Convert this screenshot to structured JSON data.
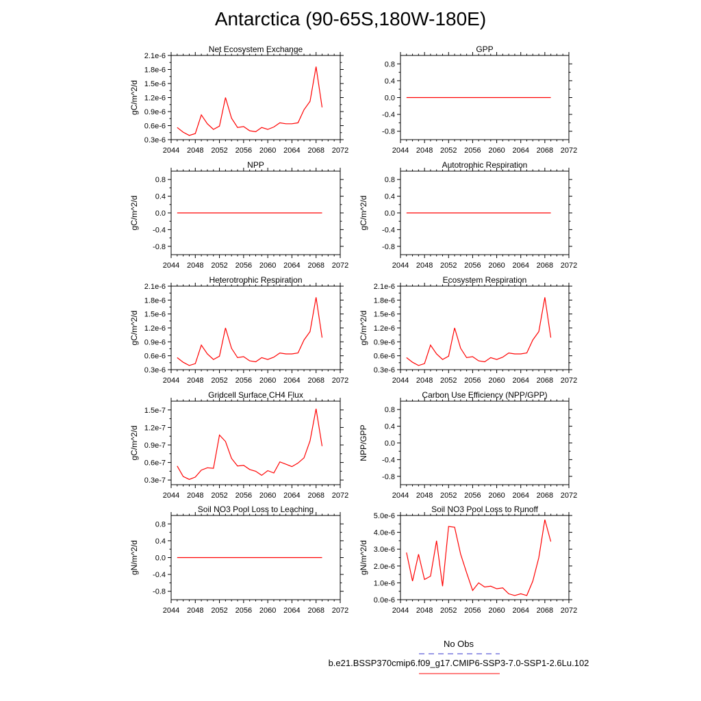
{
  "title": "Antarctica (90-65S,180W-180E)",
  "legend": {
    "obs_label": "No Obs",
    "case_label": "b.e21.BSSP370cmip6.f09_g17.CMIP6-SSP3-7.0-SSP1-2.6Lu.102",
    "obs_color": "#3333cc",
    "case_color": "#ff0000"
  },
  "chart_data": [
    {
      "type": "line",
      "title": "Net Ecosystem Exchange",
      "ylabel": "gC/m^2/d",
      "xlim": [
        2044,
        2072
      ],
      "xticks": [
        "2044",
        "2048",
        "2052",
        "2056",
        "2060",
        "2064",
        "2068",
        "2072"
      ],
      "ylim": [
        3e-07,
        2.1e-06
      ],
      "yticks": [
        "0.3e-6",
        "0.6e-6",
        "0.9e-6",
        "1.2e-6",
        "1.5e-6",
        "1.8e-6",
        "2.1e-6"
      ],
      "series": [
        {
          "color": "#ff0000",
          "x": [
            2045,
            2046,
            2047,
            2048,
            2049,
            2050,
            2051,
            2052,
            2053,
            2054,
            2055,
            2056,
            2057,
            2058,
            2059,
            2060,
            2061,
            2062,
            2063,
            2064,
            2065,
            2066,
            2067,
            2068,
            2069
          ],
          "y": [
            5.6e-07,
            4.6e-07,
            3.9e-07,
            4.3e-07,
            8.3e-07,
            6.4e-07,
            5.2e-07,
            5.9e-07,
            1.2e-06,
            7.6e-07,
            5.6e-07,
            5.8e-07,
            4.9e-07,
            4.7e-07,
            5.6e-07,
            5.2e-07,
            5.7e-07,
            6.6e-07,
            6.4e-07,
            6.4e-07,
            6.6e-07,
            9.4e-07,
            1.12e-06,
            1.86e-06,
            9.9e-07
          ]
        }
      ]
    },
    {
      "type": "line",
      "title": "GPP",
      "ylabel": "",
      "xlim": [
        2044,
        2072
      ],
      "xticks": [
        "2044",
        "2048",
        "2052",
        "2056",
        "2060",
        "2064",
        "2068",
        "2072"
      ],
      "ylim": [
        -1,
        1
      ],
      "yticks": [
        "-0.8",
        "-0.4",
        "0.0",
        "0.4",
        "0.8"
      ],
      "series": [
        {
          "color": "#ff0000",
          "x": [
            2045,
            2069
          ],
          "y": [
            0,
            0
          ]
        }
      ]
    },
    {
      "type": "line",
      "title": "NPP",
      "ylabel": "gC/m^2/d",
      "xlim": [
        2044,
        2072
      ],
      "xticks": [
        "2044",
        "2048",
        "2052",
        "2056",
        "2060",
        "2064",
        "2068",
        "2072"
      ],
      "ylim": [
        -1,
        1
      ],
      "yticks": [
        "-0.8",
        "-0.4",
        "0.0",
        "0.4",
        "0.8"
      ],
      "series": [
        {
          "color": "#ff0000",
          "x": [
            2045,
            2069
          ],
          "y": [
            0,
            0
          ]
        }
      ]
    },
    {
      "type": "line",
      "title": "Autotrophic Respiration",
      "ylabel": "gC/m^2/d",
      "xlim": [
        2044,
        2072
      ],
      "xticks": [
        "2044",
        "2048",
        "2052",
        "2056",
        "2060",
        "2064",
        "2068",
        "2072"
      ],
      "ylim": [
        -1,
        1
      ],
      "yticks": [
        "-0.8",
        "-0.4",
        "0.0",
        "0.4",
        "0.8"
      ],
      "series": [
        {
          "color": "#ff0000",
          "x": [
            2045,
            2069
          ],
          "y": [
            0,
            0
          ]
        }
      ]
    },
    {
      "type": "line",
      "title": "Heterotrophic Respiration",
      "ylabel": "gC/m^2/d",
      "xlim": [
        2044,
        2072
      ],
      "xticks": [
        "2044",
        "2048",
        "2052",
        "2056",
        "2060",
        "2064",
        "2068",
        "2072"
      ],
      "ylim": [
        3e-07,
        2.1e-06
      ],
      "yticks": [
        "0.3e-6",
        "0.6e-6",
        "0.9e-6",
        "1.2e-6",
        "1.5e-6",
        "1.8e-6",
        "2.1e-6"
      ],
      "series": [
        {
          "color": "#ff0000",
          "x": [
            2045,
            2046,
            2047,
            2048,
            2049,
            2050,
            2051,
            2052,
            2053,
            2054,
            2055,
            2056,
            2057,
            2058,
            2059,
            2060,
            2061,
            2062,
            2063,
            2064,
            2065,
            2066,
            2067,
            2068,
            2069
          ],
          "y": [
            5.6e-07,
            4.6e-07,
            3.9e-07,
            4.3e-07,
            8.3e-07,
            6.4e-07,
            5.2e-07,
            5.9e-07,
            1.2e-06,
            7.6e-07,
            5.6e-07,
            5.8e-07,
            4.9e-07,
            4.7e-07,
            5.6e-07,
            5.2e-07,
            5.7e-07,
            6.6e-07,
            6.4e-07,
            6.4e-07,
            6.6e-07,
            9.4e-07,
            1.12e-06,
            1.86e-06,
            9.9e-07
          ]
        }
      ]
    },
    {
      "type": "line",
      "title": "Ecosystem Respiration",
      "ylabel": "gC/m^2/d",
      "xlim": [
        2044,
        2072
      ],
      "xticks": [
        "2044",
        "2048",
        "2052",
        "2056",
        "2060",
        "2064",
        "2068",
        "2072"
      ],
      "ylim": [
        3e-07,
        2.1e-06
      ],
      "yticks": [
        "0.3e-6",
        "0.6e-6",
        "0.9e-6",
        "1.2e-6",
        "1.5e-6",
        "1.8e-6",
        "2.1e-6"
      ],
      "series": [
        {
          "color": "#ff0000",
          "x": [
            2045,
            2046,
            2047,
            2048,
            2049,
            2050,
            2051,
            2052,
            2053,
            2054,
            2055,
            2056,
            2057,
            2058,
            2059,
            2060,
            2061,
            2062,
            2063,
            2064,
            2065,
            2066,
            2067,
            2068,
            2069
          ],
          "y": [
            5.6e-07,
            4.6e-07,
            3.9e-07,
            4.3e-07,
            8.3e-07,
            6.4e-07,
            5.2e-07,
            5.9e-07,
            1.2e-06,
            7.6e-07,
            5.6e-07,
            5.8e-07,
            4.9e-07,
            4.7e-07,
            5.6e-07,
            5.2e-07,
            5.7e-07,
            6.6e-07,
            6.4e-07,
            6.4e-07,
            6.6e-07,
            9.4e-07,
            1.12e-06,
            1.86e-06,
            9.9e-07
          ]
        }
      ]
    },
    {
      "type": "line",
      "title": "Gridcell Surface CH4 Flux",
      "ylabel": "gC/m^2/d",
      "xlim": [
        2044,
        2072
      ],
      "xticks": [
        "2044",
        "2048",
        "2052",
        "2056",
        "2060",
        "2064",
        "2068",
        "2072"
      ],
      "ylim": [
        2.2e-08,
        1.65e-07
      ],
      "yticks": [
        "0.3e-7",
        "0.6e-7",
        "0.9e-7",
        "1.2e-7",
        "1.5e-7"
      ],
      "ytick_values": [
        3e-08,
        6e-08,
        9e-08,
        1.2e-07,
        1.5e-07
      ],
      "series": [
        {
          "color": "#ff0000",
          "x": [
            2045,
            2046,
            2047,
            2048,
            2049,
            2050,
            2051,
            2052,
            2053,
            2054,
            2055,
            2056,
            2057,
            2058,
            2059,
            2060,
            2061,
            2062,
            2063,
            2064,
            2065,
            2066,
            2067,
            2068,
            2069
          ],
          "y": [
            5.4e-08,
            3.6e-08,
            3.1e-08,
            3.5e-08,
            4.7e-08,
            5.1e-08,
            5e-08,
            1.07e-07,
            9.6e-08,
            6.7e-08,
            5.4e-08,
            5.5e-08,
            4.8e-08,
            4.5e-08,
            3.8e-08,
            4.6e-08,
            4.2e-08,
            6.1e-08,
            5.7e-08,
            5.3e-08,
            5.9e-08,
            6.8e-08,
            9.7e-08,
            1.52e-07,
            8.8e-08
          ]
        }
      ]
    },
    {
      "type": "line",
      "title": "Carbon Use Efficiency (NPP/GPP)",
      "ylabel": "NPP/GPP",
      "xlim": [
        2044,
        2072
      ],
      "xticks": [
        "2044",
        "2048",
        "2052",
        "2056",
        "2060",
        "2064",
        "2068",
        "2072"
      ],
      "ylim": [
        -1,
        1
      ],
      "yticks": [
        "-0.8",
        "-0.4",
        "0.0",
        "0.4",
        "0.8"
      ],
      "series": []
    },
    {
      "type": "line",
      "title": "Soil NO3 Pool Loss to Leaching",
      "ylabel": "gN/m^2/d",
      "xlim": [
        2044,
        2072
      ],
      "xticks": [
        "2044",
        "2048",
        "2052",
        "2056",
        "2060",
        "2064",
        "2068",
        "2072"
      ],
      "ylim": [
        -1,
        1
      ],
      "yticks": [
        "-0.8",
        "-0.4",
        "0.0",
        "0.4",
        "0.8"
      ],
      "series": [
        {
          "color": "#ff0000",
          "x": [
            2045,
            2069
          ],
          "y": [
            0,
            0
          ]
        }
      ]
    },
    {
      "type": "line",
      "title": "Soil NO3 Pool Loss to Runoff",
      "ylabel": "gN/m^2/d",
      "xlim": [
        2044,
        2072
      ],
      "xticks": [
        "2044",
        "2048",
        "2052",
        "2056",
        "2060",
        "2064",
        "2068",
        "2072"
      ],
      "ylim": [
        0,
        5e-06
      ],
      "yticks": [
        "0.0e-6",
        "1.0e-6",
        "2.0e-6",
        "3.0e-6",
        "4.0e-6",
        "5.0e-6"
      ],
      "series": [
        {
          "color": "#ff0000",
          "x": [
            2045,
            2046,
            2047,
            2048,
            2049,
            2050,
            2051,
            2052,
            2053,
            2054,
            2055,
            2056,
            2057,
            2058,
            2059,
            2060,
            2061,
            2062,
            2063,
            2064,
            2065,
            2066,
            2067,
            2068,
            2069
          ],
          "y": [
            2.8e-06,
            1.1e-06,
            2.7e-06,
            1.2e-06,
            1.4e-06,
            3.5e-06,
            8e-07,
            4.35e-06,
            4.3e-06,
            2.7e-06,
            1.6e-06,
            5.5e-07,
            1e-06,
            7.5e-07,
            8e-07,
            6.5e-07,
            7e-07,
            3.5e-07,
            2.5e-07,
            3.5e-07,
            2.5e-07,
            1.1e-06,
            2.5e-06,
            4.75e-06,
            3.45e-06
          ]
        }
      ]
    }
  ]
}
